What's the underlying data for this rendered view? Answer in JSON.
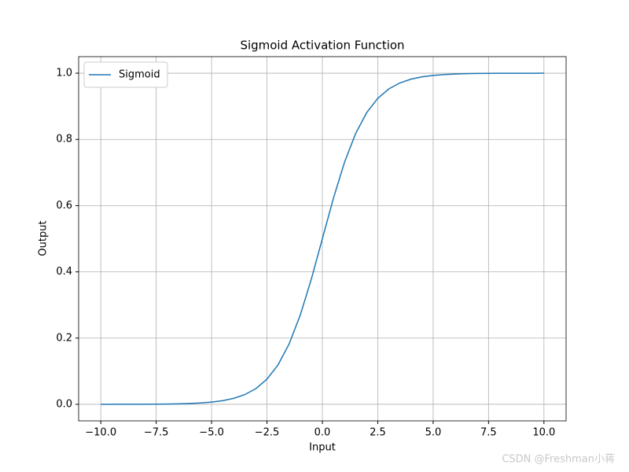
{
  "chart_data": {
    "type": "line",
    "title": "Sigmoid Activation Function",
    "x_label": "Input",
    "y_label": "Output",
    "x": [
      -10,
      -9.5,
      -9,
      -8.5,
      -8,
      -7.5,
      -7,
      -6.5,
      -6,
      -5.5,
      -5,
      -4.5,
      -4,
      -3.5,
      -3,
      -2.5,
      -2,
      -1.5,
      -1,
      -0.5,
      0,
      0.5,
      1,
      1.5,
      2,
      2.5,
      3,
      3.5,
      4,
      4.5,
      5,
      5.5,
      6,
      6.5,
      7,
      7.5,
      8,
      8.5,
      9,
      9.5,
      10
    ],
    "series": [
      {
        "name": "Sigmoid",
        "color": "#1f77b4",
        "values": [
          0.0,
          0.0001,
          0.0001,
          0.0002,
          0.0003,
          0.0006,
          0.0009,
          0.0015,
          0.0025,
          0.0041,
          0.0067,
          0.011,
          0.018,
          0.0293,
          0.0474,
          0.0759,
          0.1192,
          0.1824,
          0.2689,
          0.3775,
          0.5,
          0.6225,
          0.7311,
          0.8176,
          0.8808,
          0.9241,
          0.9526,
          0.9707,
          0.982,
          0.989,
          0.9933,
          0.9959,
          0.9975,
          0.9985,
          0.9991,
          0.9994,
          0.9997,
          0.9998,
          0.9999,
          0.9999,
          1.0
        ]
      }
    ],
    "xlim": [
      -11,
      11
    ],
    "ylim": [
      -0.05,
      1.05
    ],
    "xticks": [
      {
        "value": -10,
        "label": "−10.0"
      },
      {
        "value": -7.5,
        "label": "−7.5"
      },
      {
        "value": -5,
        "label": "−5.0"
      },
      {
        "value": -2.5,
        "label": "−2.5"
      },
      {
        "value": 0,
        "label": "0.0"
      },
      {
        "value": 2.5,
        "label": "2.5"
      },
      {
        "value": 5,
        "label": "5.0"
      },
      {
        "value": 7.5,
        "label": "7.5"
      },
      {
        "value": 10,
        "label": "10.0"
      }
    ],
    "yticks": [
      {
        "value": 0,
        "label": "0.0"
      },
      0.2,
      0.4,
      0.6,
      0.8,
      {
        "value": 1,
        "label": "1.0"
      }
    ],
    "grid": true,
    "legend": "upper-left",
    "watermark": "CSDN @Freshman小蒋"
  }
}
